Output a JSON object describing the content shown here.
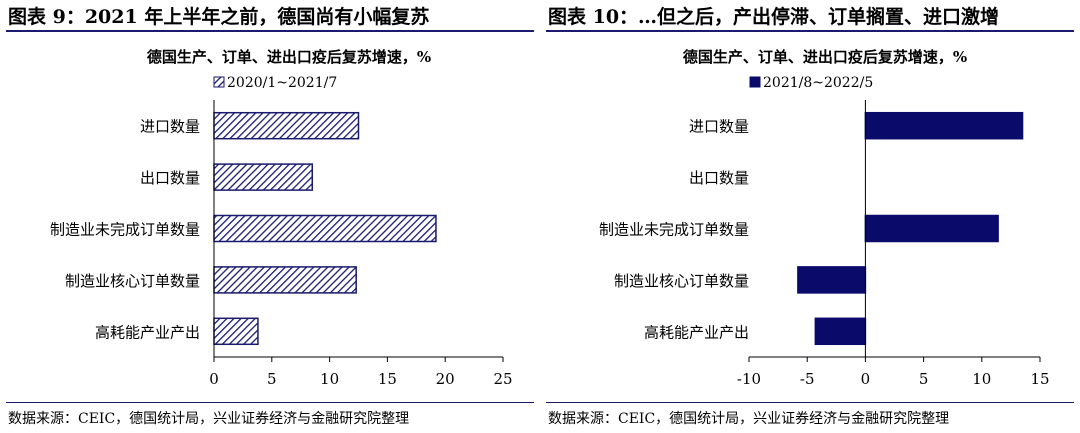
{
  "panels": [
    {
      "figure_title": "图表 9：2021 年上半年之前，德国尚有小幅复苏",
      "source": "数据来源：CEIC，德国统计局，兴业证券经济与金融研究院整理"
    },
    {
      "figure_title": "图表 10：…但之后，产出停滞、订单搁置、进口激增",
      "source": "数据来源：CEIC，德国统计局，兴业证券经济与金融研究院整理"
    }
  ],
  "chart_data": [
    {
      "type": "bar",
      "orientation": "horizontal",
      "title": "德国生产、订单、进出口疫后复苏增速，%",
      "categories": [
        "进口数量",
        "出口数量",
        "制造业未完成订单数量",
        "制造业核心订单数量",
        "高耗能产业产出"
      ],
      "series": [
        {
          "name": "2020/1~2021/7",
          "values": [
            12.5,
            8.5,
            19.2,
            12.3,
            3.8
          ],
          "fill": "hatch",
          "color": "#1a1a6e"
        }
      ],
      "xlim": [
        0,
        25
      ],
      "xticks": [
        0,
        5,
        10,
        15,
        20,
        25
      ],
      "legend": "top-left",
      "grid": false
    },
    {
      "type": "bar",
      "orientation": "horizontal",
      "title": "德国生产、订单、进出口疫后复苏增速，%",
      "categories": [
        "进口数量",
        "出口数量",
        "制造业未完成订单数量",
        "制造业核心订单数量",
        "高耗能产业产出"
      ],
      "series": [
        {
          "name": "2021/8~2022/5",
          "values": [
            13.5,
            0.0,
            11.4,
            -5.8,
            -4.3
          ],
          "fill": "solid",
          "color": "#0a0a6b"
        }
      ],
      "xlim": [
        -10,
        15
      ],
      "xticks": [
        -10,
        -5,
        0,
        5,
        10,
        15
      ],
      "legend": "top-left",
      "grid": false
    }
  ]
}
